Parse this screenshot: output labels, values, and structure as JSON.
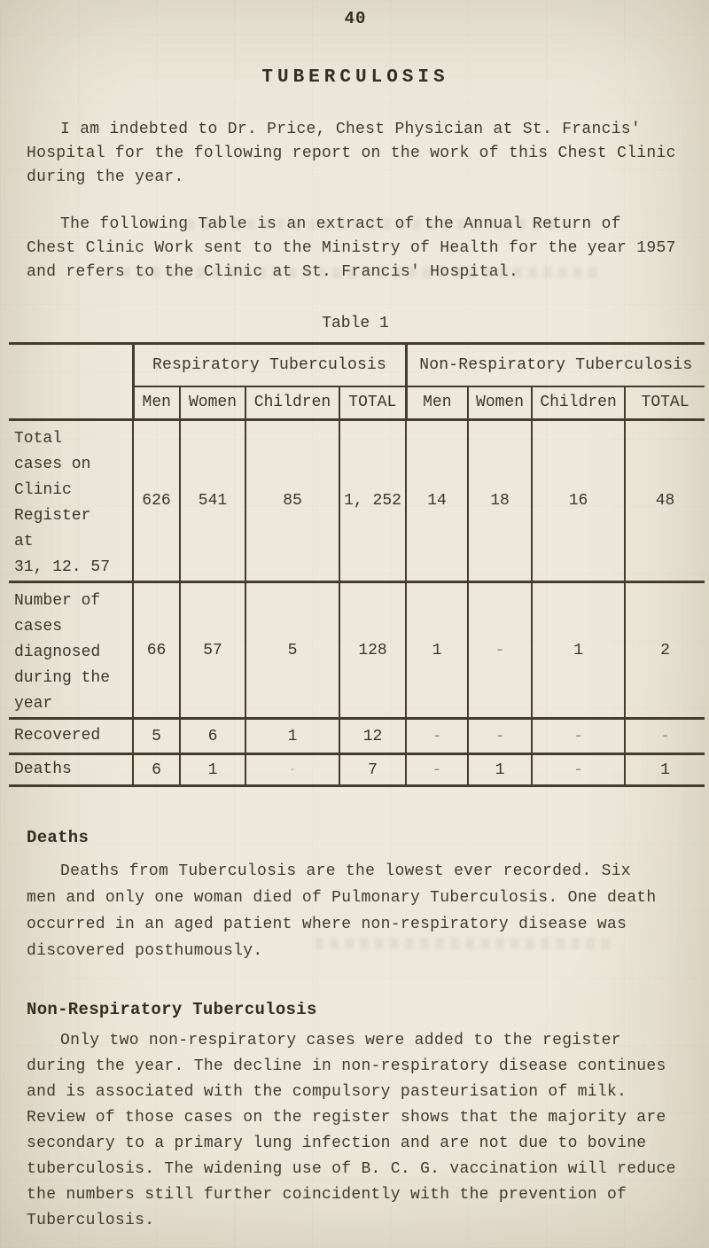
{
  "page": {
    "number": "40",
    "title": "TUBERCULOSIS"
  },
  "paragraphs": {
    "intro1": "I am indebted to Dr. Price, Chest Physician at St. Francis'\nHospital for the following report on the work of this Chest Clinic\nduring the year.",
    "intro2": "The following Table is an extract of the Annual Return of\nChest Clinic Work sent to the Ministry of Health for the year 1957\nand refers to the Clinic at St. Francis' Hospital."
  },
  "table1": {
    "caption": "Table 1",
    "group_headers": [
      "Respiratory Tuberculosis",
      "Non-Respiratory Tuberculosis"
    ],
    "sub_headers": [
      "Men",
      "Women",
      "Children",
      "TOTAL",
      "Men",
      "Women",
      "Children",
      "TOTAL"
    ],
    "rows": [
      {
        "label": "Total\ncases on\nClinic\nRegister\nat\n31, 12. 57",
        "values": [
          "626",
          "541",
          "85",
          "1, 252",
          "14",
          "18",
          "16",
          "48"
        ]
      },
      {
        "label": "Number of\ncases\ndiagnosed\nduring the\nyear",
        "values": [
          "66",
          "57",
          "5",
          "128",
          "1",
          "-",
          "1",
          "2"
        ]
      },
      {
        "label": "Recovered",
        "values": [
          "5",
          "6",
          "1",
          "12",
          "-",
          "-",
          "-",
          "-"
        ]
      },
      {
        "label": "Deaths",
        "values": [
          "6",
          "1",
          "·",
          "7",
          "-",
          "1",
          "-",
          "1"
        ]
      }
    ]
  },
  "sections": {
    "deaths": {
      "heading": "Deaths",
      "body": "Deaths from Tuberculosis are the lowest ever recorded. Six\nmen and only one woman died of Pulmonary Tuberculosis. One death\noccurred in an aged patient where non-respiratory disease was\ndiscovered posthumously."
    },
    "non_respiratory": {
      "heading": "Non-Respiratory Tuberculosis",
      "body": "Only two non-respiratory cases were added to the register\nduring the year. The decline in non-respiratory disease continues\nand is associated with the compulsory pasteurisation of milk.\nReview of those cases on the register shows that the majority are\nsecondary to a primary lung infection and are not due to bovine\ntuberculosis. The widening use of B. C. G. vaccination will reduce\nthe numbers still further coincidently with the prevention of\nTuberculosis."
    }
  }
}
